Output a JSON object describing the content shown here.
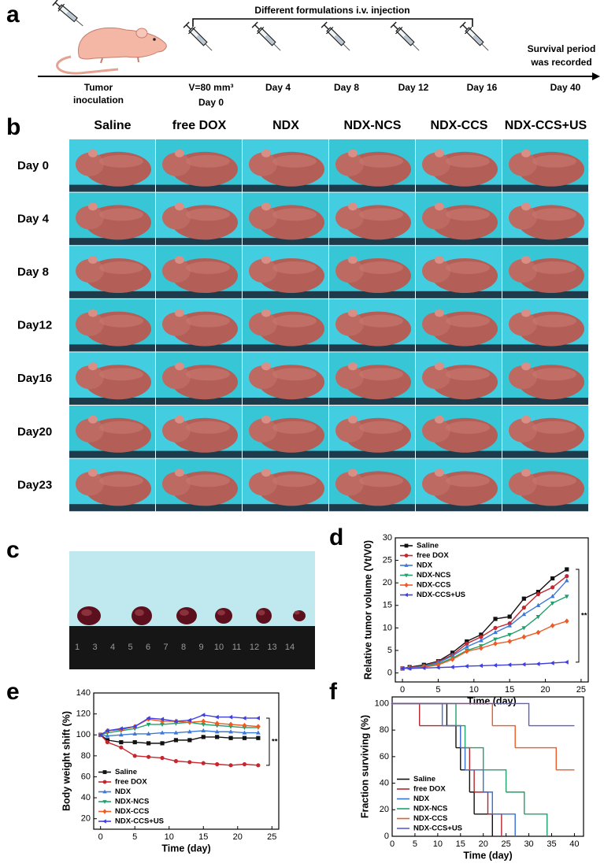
{
  "panel_labels": [
    "a",
    "b",
    "c",
    "d",
    "e",
    "f"
  ],
  "timeline": {
    "injection_label": "Different formulations i.v. injection",
    "start": [
      "Tumor",
      "inoculation"
    ],
    "volume": "V=80 mm³",
    "days": [
      "Day 0",
      "Day 4",
      "Day 8",
      "Day 12",
      "Day 16",
      "Day 40"
    ],
    "end_note": [
      "Survival period",
      "was recorded"
    ]
  },
  "photo_grid": {
    "columns": [
      "Saline",
      "free DOX",
      "NDX",
      "NDX-NCS",
      "NDX-CCS",
      "NDX-CCS+US"
    ],
    "rows": [
      "Day 0",
      "Day 4",
      "Day 8",
      "Day12",
      "Day16",
      "Day20",
      "Day23"
    ]
  },
  "ruler": {
    "labels": [
      1,
      3,
      4,
      5,
      6,
      7,
      8,
      9,
      10,
      11,
      12,
      13,
      14
    ]
  },
  "chart_data": [
    {
      "type": "line",
      "x_label": "Time (day)",
      "y_label": "Relative tumor volume (Vt/V0)",
      "xlim": [
        -1,
        26
      ],
      "ylim": [
        -2,
        30
      ],
      "xticks": [
        0,
        5,
        10,
        15,
        20,
        25
      ],
      "yticks": [
        0,
        5,
        10,
        15,
        20,
        25,
        30
      ],
      "legend": "upper left",
      "annotation": "**",
      "x": [
        0,
        1,
        3,
        5,
        7,
        9,
        11,
        13,
        15,
        17,
        19,
        21,
        23
      ],
      "series": [
        {
          "name": "Saline",
          "color": "#111111",
          "values": [
            1,
            1.3,
            1.8,
            2.6,
            4.5,
            7,
            8.5,
            12,
            12.5,
            16.5,
            18,
            21,
            23
          ]
        },
        {
          "name": "free DOX",
          "color": "#c8262e",
          "values": [
            1,
            1.2,
            1.6,
            2.5,
            4,
            6.5,
            8,
            10,
            11,
            14.5,
            17.5,
            19,
            21.5
          ]
        },
        {
          "name": "NDX",
          "color": "#3b78d8",
          "values": [
            1,
            1.1,
            1.5,
            2.3,
            3.8,
            5.8,
            7.2,
            9,
            10.5,
            13,
            15,
            17,
            20.5
          ]
        },
        {
          "name": "NDX-NCS",
          "color": "#21a06a",
          "values": [
            1,
            1.1,
            1.4,
            2,
            3.3,
            5,
            6,
            7.5,
            8.5,
            10,
            12.5,
            15.5,
            17
          ]
        },
        {
          "name": "NDX-CCS",
          "color": "#f05a22",
          "values": [
            1,
            1.1,
            1.3,
            1.8,
            3,
            4.8,
            5.5,
            6.5,
            7,
            8,
            9,
            10.5,
            11.5
          ]
        },
        {
          "name": "NDX-CCS+US",
          "color": "#3f3fe0",
          "values": [
            1,
            1,
            1.1,
            1.2,
            1.3,
            1.5,
            1.6,
            1.7,
            1.8,
            1.9,
            2,
            2.2,
            2.4
          ]
        }
      ]
    },
    {
      "type": "line",
      "x_label": "Time (day)",
      "y_label": "Body weight shift (%)",
      "xlim": [
        -1,
        26
      ],
      "ylim": [
        10,
        140
      ],
      "xticks": [
        0,
        5,
        10,
        15,
        20,
        25
      ],
      "yticks": [
        20,
        40,
        60,
        80,
        100,
        120,
        140
      ],
      "legend": "lower left",
      "annotation": "**",
      "x": [
        0,
        1,
        3,
        5,
        7,
        9,
        11,
        13,
        15,
        17,
        19,
        21,
        23
      ],
      "series": [
        {
          "name": "Saline",
          "color": "#111111",
          "values": [
            100,
            95,
            93,
            93,
            92,
            92,
            95,
            95,
            98,
            98,
            97,
            97,
            97
          ]
        },
        {
          "name": "free DOX",
          "color": "#c8262e",
          "values": [
            100,
            93,
            88,
            80,
            79,
            78,
            75,
            74,
            73,
            72,
            71,
            72,
            71
          ]
        },
        {
          "name": "NDX",
          "color": "#3b78d8",
          "values": [
            100,
            99,
            100,
            101,
            101,
            102,
            102,
            103,
            104,
            103,
            103,
            102,
            102
          ]
        },
        {
          "name": "NDX-NCS",
          "color": "#21a06a",
          "values": [
            100,
            102,
            104,
            106,
            110,
            110,
            111,
            112,
            110,
            109,
            108,
            107,
            107
          ]
        },
        {
          "name": "NDX-CCS",
          "color": "#f05a22",
          "values": [
            100,
            104,
            105,
            108,
            115,
            113,
            113,
            112,
            113,
            111,
            110,
            109,
            108
          ]
        },
        {
          "name": "NDX-CCS+US",
          "color": "#3f3fe0",
          "values": [
            100,
            104,
            106,
            108,
            116,
            115,
            113,
            114,
            119,
            117,
            117,
            116,
            116
          ]
        }
      ]
    },
    {
      "type": "step",
      "x_label": "Time (day)",
      "y_label": "Fraction surviving (%)",
      "xlim": [
        0,
        42
      ],
      "ylim": [
        0,
        105
      ],
      "xticks": [
        0,
        5,
        10,
        15,
        20,
        25,
        30,
        35,
        40
      ],
      "yticks": [
        0,
        20,
        40,
        60,
        80,
        100
      ],
      "legend": "lower left",
      "series": [
        {
          "name": "Saline",
          "color": "#111111",
          "x": [
            0,
            12,
            14,
            15,
            17,
            18,
            22
          ],
          "values": [
            100,
            83.3,
            66.7,
            50,
            33.3,
            16.7,
            0
          ]
        },
        {
          "name": "free DOX",
          "color": "#b5252e",
          "x": [
            0,
            6,
            15,
            17,
            18,
            21,
            24
          ],
          "values": [
            100,
            83.3,
            66.7,
            50,
            33.3,
            16.7,
            0
          ]
        },
        {
          "name": "NDX",
          "color": "#3a6fd8",
          "x": [
            0,
            11,
            15,
            16,
            20,
            22,
            27
          ],
          "values": [
            100,
            83.3,
            66.7,
            50,
            33.3,
            16.7,
            0
          ]
        },
        {
          "name": "NDX-NCS",
          "color": "#21a06a",
          "x": [
            0,
            14,
            16,
            20,
            25,
            29,
            34
          ],
          "values": [
            100,
            83.3,
            66.7,
            50,
            33.3,
            16.7,
            0
          ]
        },
        {
          "name": "NDX-CCS",
          "color": "#f05a22",
          "x": [
            0,
            22,
            27,
            36,
            40
          ],
          "values": [
            100,
            83.3,
            66.7,
            50,
            50
          ]
        },
        {
          "name": "NDX-CCS+US",
          "color": "#5a5ae0",
          "x": [
            0,
            30,
            40
          ],
          "values": [
            100,
            83.3,
            83.3
          ]
        }
      ]
    }
  ]
}
